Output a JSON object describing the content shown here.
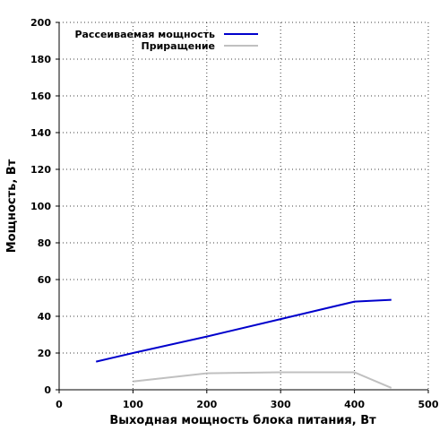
{
  "chart_data": {
    "type": "line",
    "xlabel": "Выходная мощность блока питания, Вт",
    "ylabel": "Мощность, Вт",
    "xlim": [
      0,
      500
    ],
    "ylim": [
      0,
      200
    ],
    "x_ticks": [
      0,
      100,
      200,
      300,
      400,
      500
    ],
    "y_ticks": [
      0,
      20,
      40,
      60,
      80,
      100,
      120,
      140,
      160,
      180,
      200
    ],
    "grid": true,
    "legend_position": "top-left",
    "series": [
      {
        "name": "Рассеиваемая мощность",
        "color": "#0000cc",
        "x": [
          50,
          100,
          200,
          300,
          400,
          450
        ],
        "y": [
          15.3,
          20,
          29,
          38.5,
          48,
          49
        ]
      },
      {
        "name": "Приращение",
        "color": "#c0c0c0",
        "x": [
          100,
          200,
          300,
          400,
          450
        ],
        "y": [
          4.5,
          9,
          9.5,
          9.5,
          1
        ]
      }
    ]
  }
}
